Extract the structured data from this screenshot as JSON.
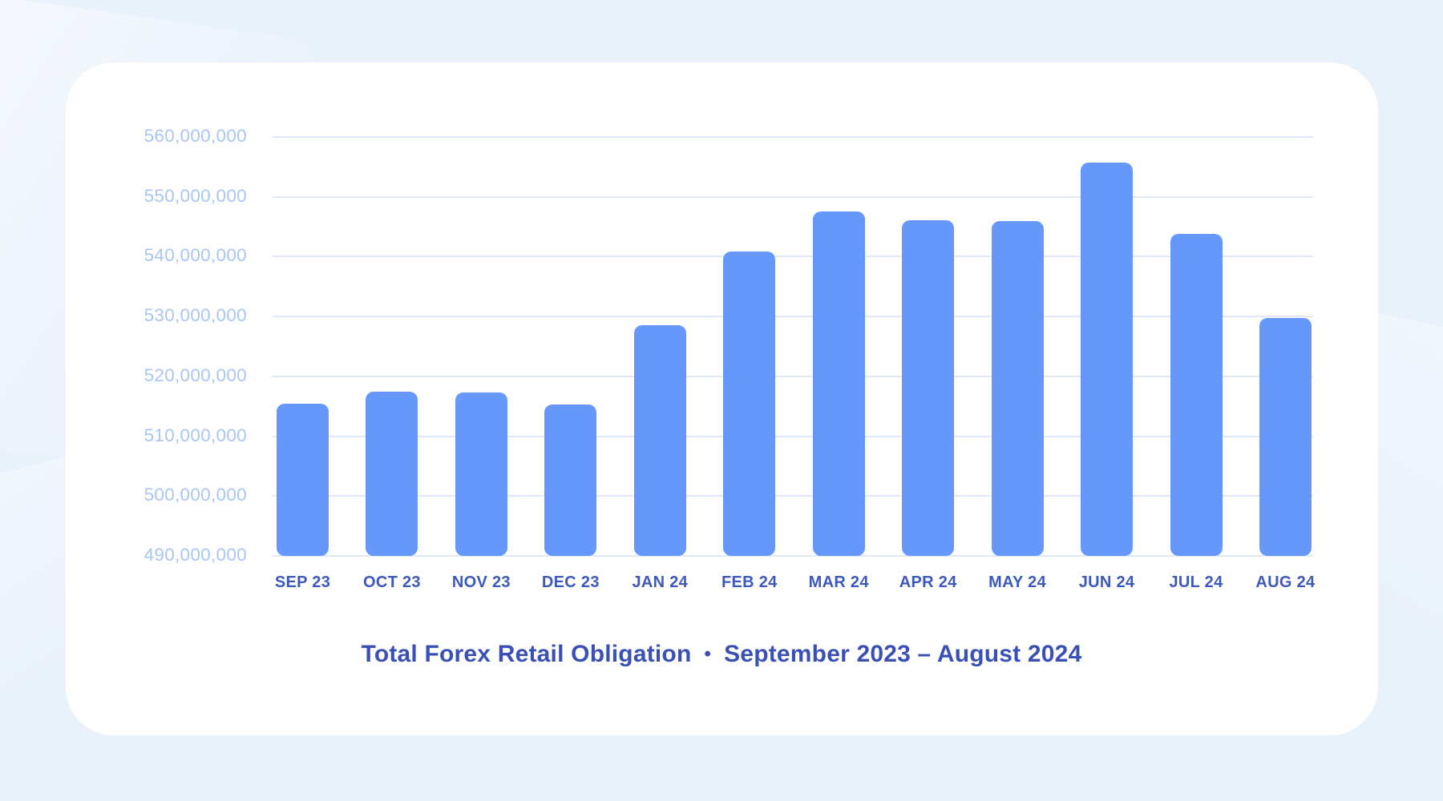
{
  "page": {
    "background_color": "#e9f1fb",
    "card_color": "#ffffff"
  },
  "chart_data": {
    "type": "bar",
    "title": "Total Forex Retail Obligation",
    "separator": "•",
    "subtitle": "September 2023 – August 2024",
    "categories": [
      "SEP 23",
      "OCT 23",
      "NOV 23",
      "DEC 23",
      "JAN 24",
      "FEB 24",
      "MAR 24",
      "APR 24",
      "MAY 24",
      "JUN 24",
      "JUL 24",
      "AUG 24"
    ],
    "values": [
      515400000,
      517400000,
      517300000,
      515300000,
      528500000,
      540800000,
      547600000,
      546100000,
      546000000,
      555700000,
      543800000,
      529800000
    ],
    "ylim": [
      490000000,
      560000000
    ],
    "ytick_step": 10000000,
    "ytick_labels": [
      "560,000,000",
      "550,000,000",
      "540,000,000",
      "530,000,000",
      "520,000,000",
      "510,000,000",
      "500,000,000",
      "490,000,000"
    ],
    "xlabel": "",
    "ylabel": "",
    "grid": true,
    "legend_position": "none",
    "bar_color": "#6598fa",
    "grid_color": "#dfe9fa",
    "ytick_color": "#a9c5f6",
    "xtick_color": "#3d59bb",
    "title_color": "#3a50b4"
  }
}
